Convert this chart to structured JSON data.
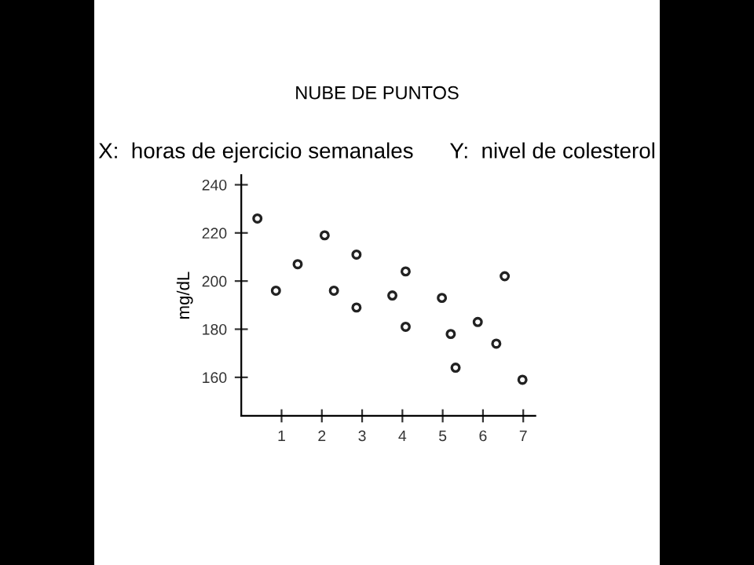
{
  "chart_data": {
    "type": "scatter",
    "title": "NUBE DE PUNTOS",
    "subtitle": "X:  horas de ejercicio semanales      Y:  nivel de colesterol",
    "ylabel": "mg/dL",
    "x": [
      0.4,
      0.86,
      1.4,
      2.07,
      2.3,
      2.86,
      2.86,
      3.75,
      4.08,
      4.08,
      4.98,
      5.2,
      5.32,
      5.87,
      6.33,
      6.54,
      6.98
    ],
    "values": [
      226,
      196,
      207,
      219,
      196,
      211,
      189,
      194,
      204,
      181,
      193,
      178,
      164,
      183,
      174,
      202,
      159
    ],
    "color": "#222222",
    "marker": "circle",
    "xlim": [
      0,
      7.3
    ],
    "ylim": [
      144,
      244
    ],
    "xticks": [
      1,
      2,
      3,
      4,
      5,
      6,
      7
    ],
    "yticks": [
      160,
      180,
      200,
      220,
      240
    ],
    "grid": false
  }
}
